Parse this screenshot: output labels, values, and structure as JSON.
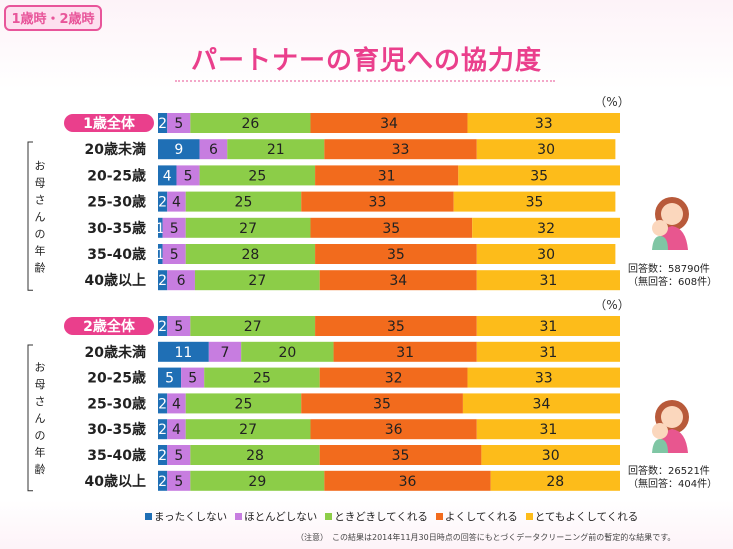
{
  "tag": "1歳時・2歳時",
  "title": "パートナーの育児への協力度",
  "side_label": "お母さんの年齢",
  "note": "（注意）　この結果は2014年11月30日時点の回答にもとづくデータクリーニング前の暫定的な結果です。",
  "colors": [
    "#1f6fb5",
    "#c77de0",
    "#8ccd48",
    "#f26b1d",
    "#fdbc1a"
  ],
  "chart_data": [
    {
      "type": "bar",
      "stacked": true,
      "unit": "（%）",
      "categories": [
        "1歳全体",
        "20歳未満",
        "20-25歳",
        "25-30歳",
        "30-35歳",
        "35-40歳",
        "40歳以上"
      ],
      "series": [
        {
          "name": "まったくしない",
          "values": [
            2,
            9,
            4,
            2,
            1,
            1,
            2
          ]
        },
        {
          "name": "ほとんどしない",
          "values": [
            5,
            6,
            5,
            4,
            5,
            5,
            6
          ]
        },
        {
          "name": "ときどきしてくれる",
          "values": [
            26,
            21,
            25,
            25,
            27,
            28,
            27
          ]
        },
        {
          "name": "よくしてくれる",
          "values": [
            34,
            33,
            31,
            33,
            35,
            35,
            34
          ]
        },
        {
          "name": "とてもよくしてくれる",
          "values": [
            33,
            30,
            35,
            35,
            32,
            30,
            31
          ]
        }
      ],
      "respondents": [
        "回答数：58790件",
        "（無回答：608件）"
      ]
    },
    {
      "type": "bar",
      "stacked": true,
      "unit": "（%）",
      "categories": [
        "2歳全体",
        "20歳未満",
        "20-25歳",
        "25-30歳",
        "30-35歳",
        "35-40歳",
        "40歳以上"
      ],
      "series": [
        {
          "name": "まったくしない",
          "values": [
            2,
            11,
            5,
            2,
            2,
            2,
            2
          ]
        },
        {
          "name": "ほとんどしない",
          "values": [
            5,
            7,
            5,
            4,
            4,
            5,
            5
          ]
        },
        {
          "name": "ときどきしてくれる",
          "values": [
            27,
            20,
            25,
            25,
            27,
            28,
            29
          ]
        },
        {
          "name": "よくしてくれる",
          "values": [
            35,
            31,
            32,
            35,
            36,
            35,
            36
          ]
        },
        {
          "name": "とてもよくしてくれる",
          "values": [
            31,
            31,
            33,
            34,
            31,
            30,
            28
          ]
        }
      ],
      "respondents": [
        "回答数：26521件",
        "（無回答：404件）"
      ]
    }
  ]
}
